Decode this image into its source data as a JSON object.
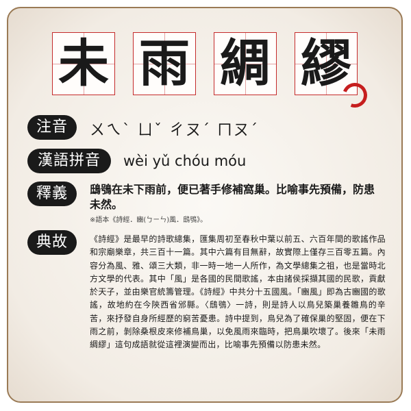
{
  "title": {
    "chars": [
      "未",
      "雨",
      "綢",
      "繆"
    ]
  },
  "zhuyin": {
    "label": "注音",
    "value": "ㄨㄟˋ ㄩˇ ㄔㄡˊ ㄇㄡˊ"
  },
  "pinyin": {
    "label": "漢語拼音",
    "value": "wèi yǔ chóu móu"
  },
  "meaning": {
    "label": "釋義",
    "value": "鴟鴞在未下雨前，便已著手修補窩巢。比喻事先預備，防患未然。",
    "note": "※語本《詩經．豳(ㄅㄧㄣ)風．鴟鴞》。"
  },
  "story": {
    "label": "典故",
    "value": "《詩經》是最早的詩歌總集，匯集周初至春秋中葉以前五、六百年間的歌謠作品和宗廟樂章，共三百十一篇。其中六篇有目無辭，故實際上僅存三百零五篇。內容分為風、雅、頌三大類，非一時一地一人所作，為文學總集之祖，也是當時北方文學的代表。其中「風」是各國的民間歌謠，本由諸侯採擷其國的民歌，貢獻於天子，並由樂官統籌管理。《詩經》中共分十五國風。「豳風」即為古豳國的歌謠，故地約在今陝西省邠縣。〈鴟鴞〉一詩，則是詩人以鳥兒築巢養雛鳥的辛苦，來抒發自身所經歷的窮苦憂患。詩中提到，鳥兒為了確保巢的堅固，便在下雨之前，剝除桑根皮來修補鳥巢，以免風雨來臨時，把鳥巢吹壞了。後來「未雨綢繆」這句成語就從這裡演變而出，比喻事先預備以防患未然。"
  }
}
